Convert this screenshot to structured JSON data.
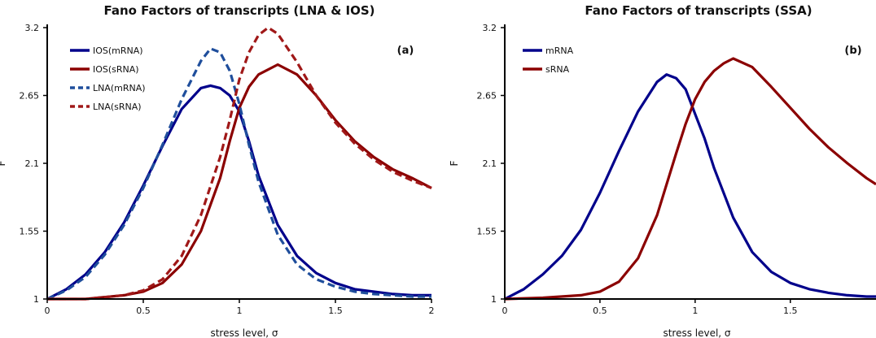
{
  "chart_data": [
    {
      "type": "line",
      "title": "Fano Factors of transcripts (LNA & IOS)",
      "panel_label": "(a)",
      "xlabel": "stress level, σ",
      "ylabel": "F",
      "xlim": [
        0,
        2
      ],
      "ylim": [
        1,
        3.2
      ],
      "x_ticks": [
        0,
        0.5,
        1,
        1.5,
        2
      ],
      "x_tick_labels": [
        "0",
        "0.5",
        "1",
        "1.5",
        "2"
      ],
      "y_ticks": [
        1,
        1.55,
        2.1,
        2.65,
        3.2
      ],
      "y_tick_labels": [
        "1",
        "1.55",
        "2.1",
        "2.65",
        "3.2"
      ],
      "legend_position": "top-left",
      "series": [
        {
          "name": "IOS(mRNA)",
          "color": "#00008b",
          "dash": "solid",
          "x": [
            0,
            0.1,
            0.2,
            0.3,
            0.4,
            0.5,
            0.6,
            0.7,
            0.8,
            0.85,
            0.9,
            0.95,
            1.0,
            1.05,
            1.1,
            1.2,
            1.3,
            1.4,
            1.5,
            1.6,
            1.7,
            1.8,
            1.9,
            2.0
          ],
          "y": [
            1.0,
            1.08,
            1.2,
            1.38,
            1.62,
            1.92,
            2.24,
            2.54,
            2.71,
            2.73,
            2.71,
            2.65,
            2.52,
            2.28,
            2.0,
            1.6,
            1.35,
            1.21,
            1.13,
            1.08,
            1.06,
            1.04,
            1.03,
            1.03
          ]
        },
        {
          "name": "IOS(sRNA)",
          "color": "#8b0000",
          "dash": "solid",
          "x": [
            0,
            0.2,
            0.4,
            0.5,
            0.6,
            0.7,
            0.8,
            0.9,
            0.95,
            1.0,
            1.05,
            1.1,
            1.2,
            1.3,
            1.4,
            1.5,
            1.6,
            1.7,
            1.8,
            1.9,
            2.0
          ],
          "y": [
            1.0,
            1.0,
            1.03,
            1.06,
            1.13,
            1.28,
            1.55,
            1.98,
            2.28,
            2.55,
            2.72,
            2.82,
            2.9,
            2.82,
            2.65,
            2.45,
            2.28,
            2.15,
            2.05,
            1.98,
            1.9
          ]
        },
        {
          "name": "LNA(mRNA)",
          "color": "#1f4e9c",
          "dash": "dashed",
          "x": [
            0,
            0.1,
            0.2,
            0.3,
            0.4,
            0.5,
            0.6,
            0.7,
            0.8,
            0.85,
            0.9,
            0.95,
            1.0,
            1.05,
            1.1,
            1.2,
            1.3,
            1.4,
            1.5,
            1.6,
            1.7,
            1.8,
            1.9,
            2.0
          ],
          "y": [
            1.0,
            1.07,
            1.18,
            1.36,
            1.6,
            1.9,
            2.25,
            2.62,
            2.93,
            3.03,
            3.0,
            2.85,
            2.58,
            2.25,
            1.95,
            1.52,
            1.28,
            1.16,
            1.1,
            1.06,
            1.04,
            1.03,
            1.02,
            1.02
          ]
        },
        {
          "name": "LNA(sRNA)",
          "color": "#a01818",
          "dash": "dashed",
          "x": [
            0,
            0.2,
            0.4,
            0.5,
            0.6,
            0.7,
            0.8,
            0.9,
            0.95,
            1.0,
            1.05,
            1.1,
            1.15,
            1.2,
            1.3,
            1.4,
            1.5,
            1.6,
            1.7,
            1.8,
            1.9,
            2.0
          ],
          "y": [
            1.0,
            1.0,
            1.03,
            1.07,
            1.16,
            1.35,
            1.68,
            2.15,
            2.45,
            2.78,
            3.0,
            3.14,
            3.2,
            3.15,
            2.92,
            2.65,
            2.43,
            2.26,
            2.13,
            2.03,
            1.96,
            1.9
          ]
        }
      ]
    },
    {
      "type": "line",
      "title": "Fano Factors of transcripts (SSA)",
      "panel_label": "(b)",
      "xlabel": "stress level, σ",
      "ylabel": "F",
      "xlim": [
        0,
        1.95
      ],
      "ylim": [
        1,
        3.2
      ],
      "x_ticks": [
        0,
        0.5,
        1,
        1.5
      ],
      "x_tick_labels": [
        "0",
        "0.5",
        "1",
        "1.5"
      ],
      "y_ticks": [
        1,
        1.55,
        2.1,
        2.65,
        3.2
      ],
      "y_tick_labels": [
        "1",
        "1.55",
        "2.1",
        "2.65",
        "3.2"
      ],
      "legend_position": "top-left",
      "series": [
        {
          "name": "mRNA",
          "color": "#00008b",
          "dash": "solid",
          "x": [
            0,
            0.05,
            0.1,
            0.2,
            0.3,
            0.4,
            0.5,
            0.6,
            0.7,
            0.8,
            0.85,
            0.9,
            0.95,
            1.0,
            1.05,
            1.1,
            1.2,
            1.3,
            1.4,
            1.5,
            1.6,
            1.7,
            1.8,
            1.9,
            1.95
          ],
          "y": [
            1.0,
            1.04,
            1.08,
            1.2,
            1.35,
            1.56,
            1.86,
            2.2,
            2.52,
            2.76,
            2.82,
            2.79,
            2.7,
            2.5,
            2.3,
            2.06,
            1.66,
            1.38,
            1.22,
            1.13,
            1.08,
            1.05,
            1.03,
            1.02,
            1.02
          ]
        },
        {
          "name": "sRNA",
          "color": "#8b0000",
          "dash": "solid",
          "x": [
            0,
            0.2,
            0.4,
            0.5,
            0.6,
            0.7,
            0.8,
            0.9,
            0.95,
            1.0,
            1.05,
            1.1,
            1.15,
            1.2,
            1.3,
            1.4,
            1.5,
            1.6,
            1.7,
            1.8,
            1.9,
            1.95
          ],
          "y": [
            1.0,
            1.01,
            1.03,
            1.06,
            1.14,
            1.33,
            1.68,
            2.18,
            2.42,
            2.62,
            2.76,
            2.85,
            2.91,
            2.95,
            2.88,
            2.72,
            2.55,
            2.38,
            2.23,
            2.1,
            1.98,
            1.93
          ]
        }
      ]
    }
  ]
}
